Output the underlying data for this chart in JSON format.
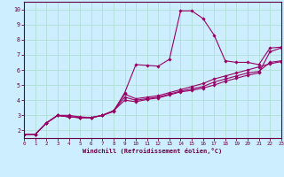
{
  "title": "",
  "xlabel": "Windchill (Refroidissement éolien,°C)",
  "ylabel": "",
  "xlim": [
    0,
    23
  ],
  "ylim": [
    1.5,
    10.5
  ],
  "xticks": [
    0,
    1,
    2,
    3,
    4,
    5,
    6,
    7,
    8,
    9,
    10,
    11,
    12,
    13,
    14,
    15,
    16,
    17,
    18,
    19,
    20,
    21,
    22,
    23
  ],
  "yticks": [
    2,
    3,
    4,
    5,
    6,
    7,
    8,
    9,
    10
  ],
  "bg_color": "#cceeff",
  "line_color": "#990066",
  "grid_color": "#aaddcc",
  "series1": [
    [
      0,
      1.75
    ],
    [
      1,
      1.75
    ],
    [
      2,
      2.5
    ],
    [
      3,
      3.0
    ],
    [
      4,
      3.0
    ],
    [
      5,
      2.9
    ],
    [
      6,
      2.85
    ],
    [
      7,
      3.0
    ],
    [
      8,
      3.25
    ],
    [
      9,
      4.5
    ],
    [
      10,
      6.35
    ],
    [
      11,
      6.3
    ],
    [
      12,
      6.25
    ],
    [
      13,
      6.7
    ],
    [
      14,
      9.9
    ],
    [
      15,
      9.9
    ],
    [
      16,
      9.4
    ],
    [
      17,
      8.3
    ],
    [
      18,
      6.6
    ],
    [
      19,
      6.5
    ],
    [
      20,
      6.5
    ],
    [
      21,
      6.35
    ],
    [
      22,
      7.45
    ],
    [
      23,
      7.5
    ]
  ],
  "series2": [
    [
      0,
      1.75
    ],
    [
      1,
      1.75
    ],
    [
      2,
      2.5
    ],
    [
      3,
      3.0
    ],
    [
      4,
      2.9
    ],
    [
      5,
      2.85
    ],
    [
      6,
      2.85
    ],
    [
      7,
      3.0
    ],
    [
      8,
      3.3
    ],
    [
      9,
      4.4
    ],
    [
      10,
      4.1
    ],
    [
      11,
      4.2
    ],
    [
      12,
      4.3
    ],
    [
      13,
      4.5
    ],
    [
      14,
      4.7
    ],
    [
      15,
      4.9
    ],
    [
      16,
      5.1
    ],
    [
      17,
      5.4
    ],
    [
      18,
      5.6
    ],
    [
      19,
      5.8
    ],
    [
      20,
      6.0
    ],
    [
      21,
      6.2
    ],
    [
      22,
      6.4
    ],
    [
      23,
      6.55
    ]
  ],
  "series3": [
    [
      0,
      1.75
    ],
    [
      1,
      1.75
    ],
    [
      2,
      2.5
    ],
    [
      3,
      3.0
    ],
    [
      4,
      2.9
    ],
    [
      5,
      2.85
    ],
    [
      6,
      2.85
    ],
    [
      7,
      3.0
    ],
    [
      8,
      3.3
    ],
    [
      9,
      4.2
    ],
    [
      10,
      4.0
    ],
    [
      11,
      4.1
    ],
    [
      12,
      4.2
    ],
    [
      13,
      4.4
    ],
    [
      14,
      4.6
    ],
    [
      15,
      4.75
    ],
    [
      16,
      4.9
    ],
    [
      17,
      5.2
    ],
    [
      18,
      5.4
    ],
    [
      19,
      5.6
    ],
    [
      20,
      5.8
    ],
    [
      21,
      5.9
    ],
    [
      22,
      6.5
    ],
    [
      23,
      6.6
    ]
  ],
  "series4": [
    [
      0,
      1.75
    ],
    [
      1,
      1.75
    ],
    [
      2,
      2.5
    ],
    [
      3,
      3.0
    ],
    [
      4,
      2.9
    ],
    [
      5,
      2.85
    ],
    [
      6,
      2.85
    ],
    [
      7,
      3.0
    ],
    [
      8,
      3.3
    ],
    [
      9,
      4.0
    ],
    [
      10,
      3.9
    ],
    [
      11,
      4.05
    ],
    [
      12,
      4.15
    ],
    [
      13,
      4.35
    ],
    [
      14,
      4.55
    ],
    [
      15,
      4.65
    ],
    [
      16,
      4.8
    ],
    [
      17,
      5.0
    ],
    [
      18,
      5.25
    ],
    [
      19,
      5.45
    ],
    [
      20,
      5.65
    ],
    [
      21,
      5.8
    ],
    [
      22,
      7.2
    ],
    [
      23,
      7.45
    ]
  ]
}
